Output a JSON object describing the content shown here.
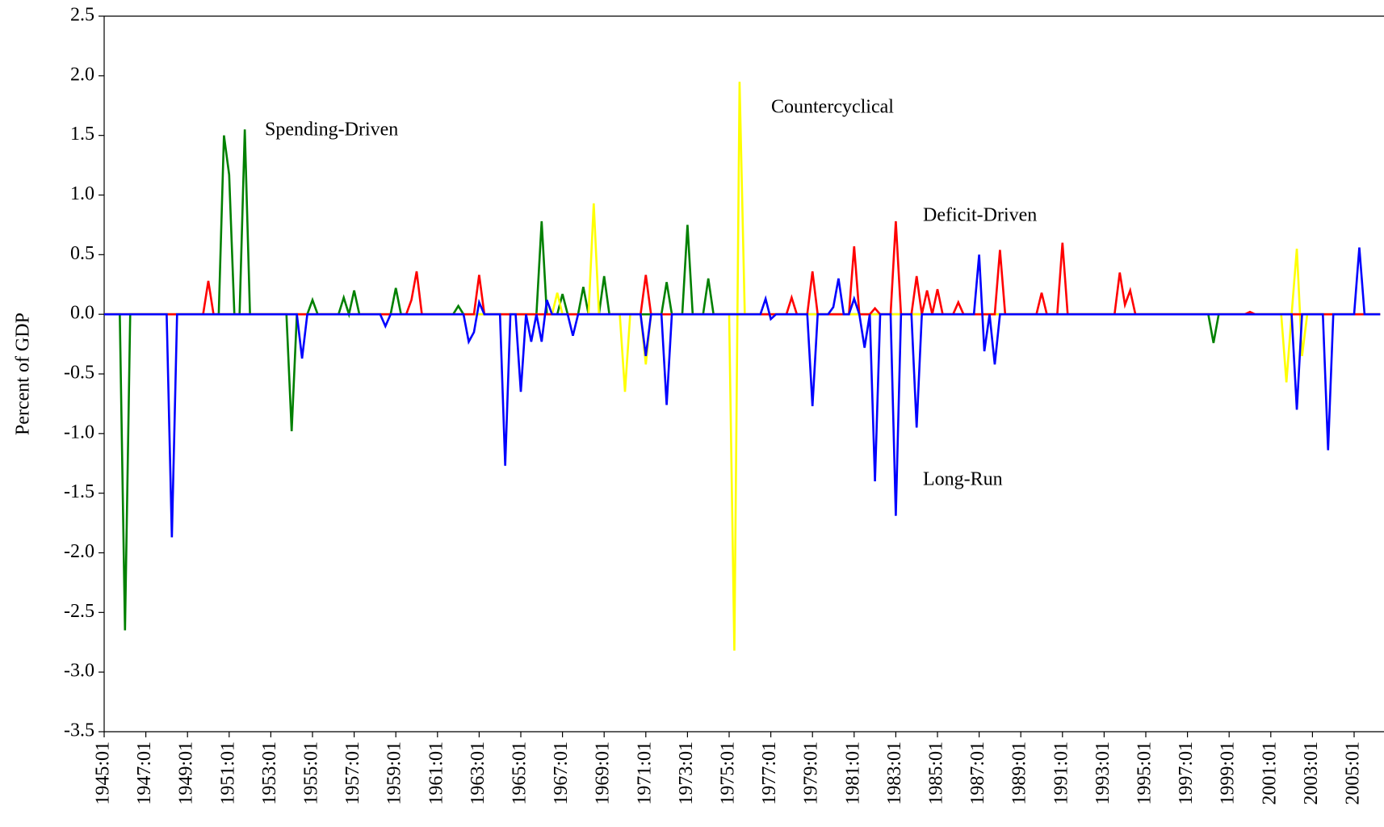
{
  "chart_data": {
    "type": "line",
    "ylabel": "Percent of GDP",
    "categories": [
      "1945:01",
      null,
      null,
      null,
      null,
      null,
      null,
      null,
      "1947:01",
      null,
      null,
      null,
      null,
      null,
      null,
      null,
      "1949:01",
      null,
      null,
      null,
      null,
      null,
      null,
      null,
      "1951:01",
      null,
      null,
      null,
      null,
      null,
      null,
      null,
      "1953:01",
      null,
      null,
      null,
      null,
      null,
      null,
      null,
      "1955:01",
      null,
      null,
      null,
      null,
      null,
      null,
      null,
      "1957:01",
      null,
      null,
      null,
      null,
      null,
      null,
      null,
      "1959:01",
      null,
      null,
      null,
      null,
      null,
      null,
      null,
      "1961:01",
      null,
      null,
      null,
      null,
      null,
      null,
      null,
      "1963:01",
      null,
      null,
      null,
      null,
      null,
      null,
      null,
      "1965:01",
      null,
      null,
      null,
      null,
      null,
      null,
      null,
      "1967:01",
      null,
      null,
      null,
      null,
      null,
      null,
      null,
      "1969:01",
      null,
      null,
      null,
      null,
      null,
      null,
      null,
      "1971:01",
      null,
      null,
      null,
      null,
      null,
      null,
      null,
      "1973:01",
      null,
      null,
      null,
      null,
      null,
      null,
      null,
      "1975:01",
      null,
      null,
      null,
      null,
      null,
      null,
      null,
      "1977:01",
      null,
      null,
      null,
      null,
      null,
      null,
      null,
      "1979:01",
      null,
      null,
      null,
      null,
      null,
      null,
      null,
      "1981:01",
      null,
      null,
      null,
      null,
      null,
      null,
      null,
      "1983:01",
      null,
      null,
      null,
      null,
      null,
      null,
      null,
      "1985:01",
      null,
      null,
      null,
      null,
      null,
      null,
      null,
      "1987:01",
      null,
      null,
      null,
      null,
      null,
      null,
      null,
      "1989:01",
      null,
      null,
      null,
      null,
      null,
      null,
      null,
      "1991:01",
      null,
      null,
      null,
      null,
      null,
      null,
      null,
      "1993:01",
      null,
      null,
      null,
      null,
      null,
      null,
      null,
      "1995:01",
      null,
      null,
      null,
      null,
      null,
      null,
      null,
      "1997:01",
      null,
      null,
      null,
      null,
      null,
      null,
      null,
      "1999:01",
      null,
      null,
      null,
      null,
      null,
      null,
      null,
      "2001:01",
      null,
      null,
      null,
      null,
      null,
      null,
      null,
      "2003:01",
      null,
      null,
      null,
      null,
      null,
      null,
      null,
      "2005:01",
      null,
      null,
      null,
      null,
      null
    ],
    "series": [
      {
        "name": "Spending-Driven",
        "color": "#008000",
        "values": [
          0,
          0,
          0,
          0,
          -2.65,
          0,
          0,
          0,
          0,
          0,
          0,
          0,
          0,
          0,
          0,
          0,
          0,
          0,
          0,
          0,
          0,
          0,
          0,
          1.5,
          1.17,
          0,
          0,
          1.55,
          0,
          0,
          0,
          0,
          0,
          0,
          0,
          0,
          -0.98,
          0,
          0,
          0,
          0.12,
          0,
          0,
          0,
          0,
          0,
          0.14,
          0,
          0.2,
          0,
          0,
          0,
          0,
          0,
          0,
          0,
          0.22,
          0,
          0,
          0,
          0,
          0,
          0,
          0,
          0,
          0,
          0,
          0,
          0.07,
          0,
          0,
          0,
          0,
          0,
          0,
          0,
          0,
          0,
          0,
          0,
          0,
          0,
          0,
          0,
          0.78,
          0,
          0,
          0,
          0.17,
          0,
          0,
          0,
          0.23,
          0,
          0,
          0,
          0.32,
          0,
          0,
          0,
          0,
          0,
          0,
          0,
          0,
          0,
          0,
          0,
          0.27,
          0,
          0,
          0,
          0.75,
          0,
          0,
          0,
          0.3,
          0,
          0,
          0,
          0,
          0,
          0,
          0,
          0,
          0,
          0,
          0,
          0,
          0,
          0,
          0,
          0,
          0,
          0,
          0,
          0,
          0,
          0,
          0,
          0,
          0,
          0,
          0,
          0,
          0,
          0,
          0,
          0,
          0,
          0,
          0,
          0,
          0,
          0,
          0,
          0,
          0,
          0,
          0,
          0,
          0,
          0,
          0,
          0,
          0,
          0,
          0,
          0,
          0,
          0,
          0,
          0,
          0,
          0,
          0,
          0,
          0,
          0,
          0,
          0,
          0,
          0,
          0,
          0,
          0,
          0,
          0,
          0,
          0,
          0,
          0,
          0,
          0,
          0,
          0,
          0,
          0,
          0,
          0,
          0,
          0,
          0,
          0,
          0,
          0,
          0,
          0,
          0,
          0,
          0,
          0,
          0,
          -0.24,
          0,
          0,
          0,
          0,
          0,
          0,
          0,
          0,
          0,
          0,
          0,
          0,
          0,
          0,
          0,
          0,
          0,
          0,
          0,
          0,
          0,
          0,
          0,
          0,
          0,
          0,
          0,
          0,
          0,
          0,
          0,
          0
        ]
      },
      {
        "name": "Countercyclical",
        "color": "#ffff00",
        "values": [
          0,
          0,
          0,
          0,
          0,
          0,
          0,
          0,
          0,
          0,
          0,
          0,
          0,
          0,
          0,
          0,
          0,
          0,
          0,
          0,
          0,
          0,
          0,
          0,
          0,
          0,
          0,
          0,
          0,
          0,
          0,
          0,
          0,
          0,
          0,
          0,
          0,
          0,
          0,
          0,
          0,
          0,
          0,
          0,
          0,
          0,
          0,
          0,
          0,
          0,
          0,
          0,
          0,
          0,
          0,
          0,
          0,
          0,
          0,
          0,
          0,
          0,
          0,
          0,
          0,
          0,
          0,
          0,
          0,
          0,
          0,
          0,
          0,
          0,
          0,
          0,
          0,
          0,
          0,
          0,
          0,
          0,
          0,
          0,
          0,
          0,
          0,
          0.18,
          0,
          0,
          0,
          0,
          0,
          0,
          0.93,
          0,
          0,
          0,
          0,
          0,
          -0.65,
          0,
          0,
          0,
          -0.42,
          0,
          0,
          0,
          0,
          0,
          0,
          0,
          0,
          0,
          0,
          0,
          0,
          0,
          0,
          0,
          0,
          -2.82,
          1.95,
          0,
          0,
          0,
          0,
          0,
          0,
          0,
          0,
          0,
          0,
          0,
          0,
          0,
          0,
          0,
          0,
          0,
          0,
          0,
          0,
          0,
          0,
          0,
          0,
          0,
          0,
          0,
          0,
          0,
          0,
          0,
          0,
          0,
          0,
          0,
          0,
          0,
          0,
          0,
          0,
          0,
          0,
          0,
          0,
          0,
          0,
          0,
          0,
          0,
          0,
          0,
          0,
          0,
          0,
          0,
          0,
          0,
          0,
          0,
          0,
          0,
          0,
          0,
          0,
          0,
          0,
          0,
          0,
          0,
          0,
          0,
          0,
          0,
          0,
          0,
          0,
          0,
          0,
          0,
          0,
          0,
          0,
          0,
          0,
          0,
          0,
          0,
          0,
          0,
          0,
          0,
          0,
          0,
          0,
          0,
          0,
          0,
          0,
          0,
          0,
          0,
          0,
          0,
          0,
          -0.57,
          0,
          0.55,
          -0.35,
          0,
          0,
          0,
          0,
          0,
          0,
          0,
          0,
          0,
          0,
          0,
          0,
          0,
          0,
          0
        ]
      },
      {
        "name": "Deficit-Driven",
        "color": "#ff0000",
        "values": [
          0,
          0,
          0,
          0,
          0,
          0,
          0,
          0,
          0,
          0,
          0,
          0,
          0,
          0,
          0,
          0,
          0,
          0,
          0,
          0,
          0.28,
          0,
          0,
          0,
          0,
          0,
          0,
          0,
          0,
          0,
          0,
          0,
          0,
          0,
          0,
          0,
          0,
          0,
          0,
          0,
          0,
          0,
          0,
          0,
          0,
          0,
          0,
          0,
          0,
          0,
          0,
          0,
          0,
          0,
          0,
          0,
          0,
          0,
          0,
          0.12,
          0.36,
          0,
          0,
          0,
          0,
          0,
          0,
          0,
          0,
          0,
          0,
          0,
          0.33,
          0,
          0,
          0,
          0,
          0,
          0,
          0,
          0,
          0,
          0,
          0,
          0,
          0,
          0,
          0,
          0,
          0,
          0,
          0,
          0,
          0,
          0,
          0,
          0,
          0,
          0,
          0,
          0,
          0,
          0,
          0,
          0.33,
          0,
          0,
          0,
          0,
          0,
          0,
          0,
          0,
          0,
          0,
          0,
          0,
          0,
          0,
          0,
          0,
          0,
          0,
          0,
          0,
          0,
          0,
          0,
          0,
          0,
          0,
          0,
          0.14,
          0,
          0,
          0,
          0.36,
          0,
          0,
          0,
          0,
          0,
          0,
          0,
          0.57,
          0,
          0,
          0,
          0.05,
          0,
          0,
          0,
          0.78,
          0,
          0,
          0,
          0.32,
          0,
          0.2,
          0,
          0.21,
          0,
          0,
          0,
          0.1,
          0,
          0,
          0,
          0,
          0,
          0,
          0,
          0.54,
          0,
          0,
          0,
          0,
          0,
          0,
          0,
          0.18,
          0,
          0,
          0,
          0.6,
          0,
          0,
          0,
          0,
          0,
          0,
          0,
          0,
          0,
          0,
          0.35,
          0.08,
          0.2,
          0,
          0,
          0,
          0,
          0,
          0,
          0,
          0,
          0,
          0,
          0,
          0,
          0,
          0,
          0,
          0,
          0,
          0,
          0,
          0,
          0,
          0,
          0.02,
          0,
          0,
          0,
          0,
          0,
          0,
          0,
          0,
          0,
          0,
          0,
          0,
          0,
          0,
          0,
          0,
          0,
          0,
          0,
          0,
          0,
          0,
          0,
          0,
          0
        ]
      },
      {
        "name": "Long-Run",
        "color": "#0000ff",
        "values": [
          0,
          0,
          0,
          0,
          0,
          0,
          0,
          0,
          0,
          0,
          0,
          0,
          0,
          -1.87,
          0,
          0,
          0,
          0,
          0,
          0,
          0,
          0,
          0,
          0,
          0,
          0,
          0,
          0,
          0,
          0,
          0,
          0,
          0,
          0,
          0,
          0,
          0,
          0,
          -0.37,
          0,
          0,
          0,
          0,
          0,
          0,
          0,
          0,
          0,
          0,
          0,
          0,
          0,
          0,
          0,
          -0.1,
          0,
          0,
          0,
          0,
          0,
          0,
          0,
          0,
          0,
          0,
          0,
          0,
          0,
          0,
          0,
          -0.23,
          -0.15,
          0.1,
          0,
          0,
          0,
          0,
          -1.27,
          0,
          0,
          -0.65,
          0,
          -0.23,
          0,
          -0.23,
          0.12,
          0,
          0,
          0,
          0,
          -0.18,
          0,
          0,
          0,
          0,
          0,
          0,
          0,
          0,
          0,
          0,
          0,
          0,
          0,
          -0.35,
          0,
          0,
          0,
          -0.76,
          0,
          0,
          0,
          0,
          0,
          0,
          0,
          0,
          0,
          0,
          0,
          0,
          0,
          0,
          0,
          0,
          0,
          0,
          0.13,
          -0.04,
          0,
          0,
          0,
          0,
          0,
          0,
          0,
          -0.77,
          0,
          0,
          0,
          0.06,
          0.3,
          0,
          0,
          0.13,
          0,
          -0.28,
          0,
          -1.4,
          0,
          0,
          0,
          -1.69,
          0,
          0,
          0,
          -0.95,
          0,
          0,
          0,
          0,
          0,
          0,
          0,
          0,
          0,
          0,
          0,
          0.5,
          -0.31,
          0,
          -0.42,
          0,
          0,
          0,
          0,
          0,
          0,
          0,
          0,
          0,
          0,
          0,
          0,
          0,
          0,
          0,
          0,
          0,
          0,
          0,
          0,
          0,
          0,
          0,
          0,
          0,
          0,
          0,
          0,
          0,
          0,
          0,
          0,
          0,
          0,
          0,
          0,
          0,
          0,
          0,
          0,
          0,
          0,
          0,
          0,
          0,
          0,
          0,
          0,
          0,
          0,
          0,
          0,
          0,
          0,
          0,
          0,
          0,
          -0.8,
          0,
          0,
          0,
          0,
          0,
          -1.14,
          0,
          0,
          0,
          0,
          0,
          0.56,
          0,
          0,
          0,
          0
        ]
      }
    ],
    "ylim": [
      -3.5,
      2.5
    ],
    "yticks": [
      2.5,
      {
        "value": 2,
        "label": "2.0"
      },
      1.5,
      {
        "value": 1,
        "label": "1.0"
      },
      0.5,
      {
        "value": 0,
        "label": "0.0"
      },
      -0.5,
      {
        "value": -1,
        "label": "-1.0"
      },
      -1.5,
      {
        "value": -2,
        "label": "-2.0"
      },
      -2.5,
      {
        "value": -3,
        "label": "-3.0"
      },
      -3.5
    ],
    "grid": false
  }
}
